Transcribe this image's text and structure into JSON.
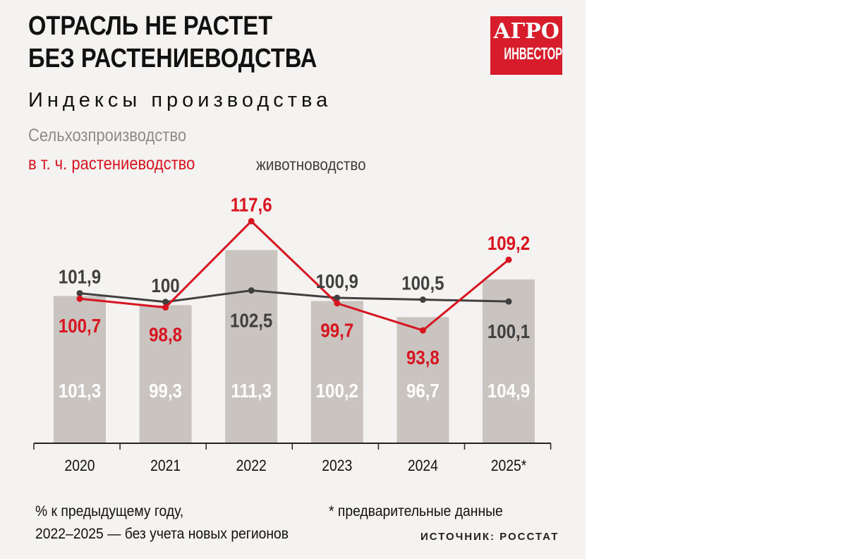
{
  "title_line1": "ОТРАСЛЬ НЕ РАСТЕТ",
  "title_line2": "БЕЗ РАСТЕНИЕВОДСТВА",
  "subtitle": "Индексы производства",
  "logo": {
    "line1": "АГРО",
    "line2": "ИНВЕСТОР"
  },
  "footnotes": {
    "note1": "% к предыдущему году,",
    "note2": "2022–2025 — без учета новых регионов",
    "note3": "* предварительные данные",
    "source": "ИСТОЧНИК: РОССТАТ"
  },
  "chart_data": {
    "type": "bar+line",
    "title": "Индексы производства",
    "categories": [
      "2020",
      "2021",
      "2022",
      "2023",
      "2024",
      "2025*"
    ],
    "series": [
      {
        "name": "Сельхозпроизводство",
        "kind": "bar",
        "color": "#c9c4c0",
        "values": [
          101.3,
          99.3,
          111.3,
          100.2,
          96.7,
          104.9
        ],
        "labels": [
          "101,3",
          "99,3",
          "111,3",
          "100,2",
          "96,7",
          "104,9"
        ]
      },
      {
        "name": "в т. ч. растениеводство",
        "kind": "line",
        "color": "#d7141f",
        "values": [
          100.7,
          98.8,
          117.6,
          99.7,
          93.8,
          109.2
        ],
        "labels": [
          "100,7",
          "98,8",
          "117,6",
          "99,7",
          "93,8",
          "109,2"
        ]
      },
      {
        "name": "животноводство",
        "kind": "line",
        "color": "#404040",
        "values": [
          101.9,
          100,
          102.5,
          100.9,
          100.5,
          100.1
        ],
        "labels": [
          "101,9",
          "100",
          "102,5",
          "100,9",
          "100,5",
          "100,1"
        ]
      }
    ],
    "ylim": [
      69.2,
      120
    ],
    "grid": false,
    "legend": "top-left"
  }
}
